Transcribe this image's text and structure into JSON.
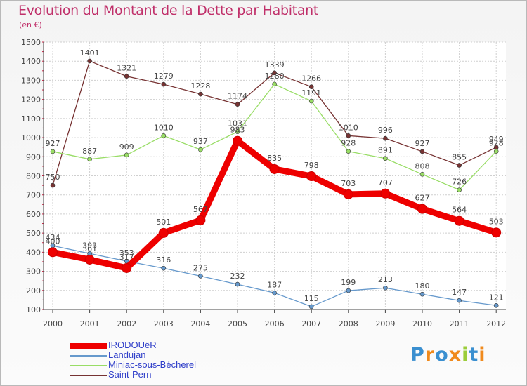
{
  "title": "Evolution du Montant de la Dette par Habitant",
  "subtitle": "(en €)",
  "logo": {
    "text": "Proxiti"
  },
  "chart_data": {
    "type": "line",
    "title": "Evolution du Montant de la Dette par Habitant",
    "ylabel": "(en €)",
    "xlabel": "",
    "ylim": [
      100,
      1500
    ],
    "yticks": [
      "100",
      "200",
      "300",
      "400",
      "500",
      "600",
      "700",
      "800",
      "900",
      "1000",
      "1100",
      "1200",
      "1300",
      "1400",
      "1500"
    ],
    "grid": true,
    "legend_position": "bottom-left",
    "categories": [
      "2000",
      "2001",
      "2002",
      "2003",
      "2004",
      "2005",
      "2006",
      "2007",
      "2008",
      "2009",
      "2010",
      "2011",
      "2012"
    ],
    "series": [
      {
        "name": "IRODOUëR",
        "color": "#ee0000",
        "emphasis": true,
        "values": [
          400,
          361,
          317,
          501,
          567,
          983,
          835,
          798,
          703,
          707,
          627,
          564,
          503
        ]
      },
      {
        "name": "Landujan",
        "color": "#6699cc",
        "values": [
          434,
          393,
          353,
          316,
          275,
          232,
          187,
          115,
          199,
          213,
          180,
          147,
          121
        ]
      },
      {
        "name": "Miniac-sous-Bécherel",
        "color": "#99dd66",
        "values": [
          927,
          887,
          909,
          1010,
          937,
          1031,
          1280,
          1191,
          928,
          891,
          808,
          726,
          928
        ]
      },
      {
        "name": "Saint-Pern",
        "color": "#773333",
        "values": [
          750,
          1401,
          1321,
          1279,
          1228,
          1174,
          1339,
          1266,
          1010,
          996,
          927,
          855,
          949
        ]
      }
    ]
  }
}
